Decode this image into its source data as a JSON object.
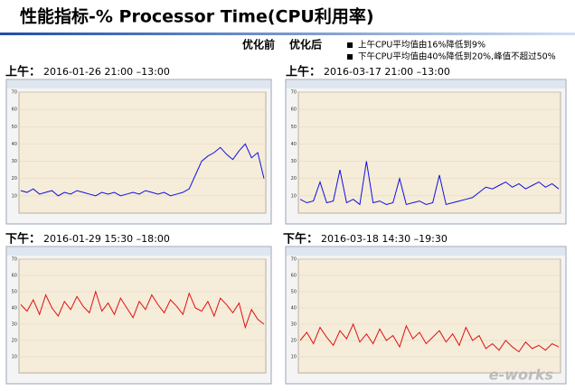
{
  "header": {
    "title": "性能指标-% Processor Time(CPU利用率)"
  },
  "comparison": {
    "before": "优化前",
    "after": "优化后",
    "notes": [
      "上午CPU平均值由16%降低到9%",
      "下午CPU平均值由40%降低到20%,峰值不超过50%"
    ]
  },
  "sections": [
    {
      "label": "上午：",
      "time": "2016-01-26 21:00 –13:00"
    },
    {
      "label": "上午：",
      "time": "2016-03-17 21:00 –13:00"
    },
    {
      "label": "下午：",
      "time": "2016-01-29 15:30 –18:00"
    },
    {
      "label": "下午：",
      "time": "2016-03-18 14:30 –19:30"
    }
  ],
  "watermark": "e-works",
  "chart_data": [
    {
      "type": "line",
      "ylim": [
        0,
        70
      ],
      "yticks": [
        10,
        20,
        30,
        40,
        50,
        60,
        70
      ],
      "series": [
        {
          "color": "#1010e0",
          "values": [
            13,
            12,
            14,
            11,
            12,
            13,
            10,
            12,
            11,
            13,
            12,
            11,
            10,
            12,
            11,
            12,
            10,
            11,
            12,
            11,
            13,
            12,
            11,
            12,
            10,
            11,
            12,
            14,
            22,
            30,
            33,
            35,
            38,
            34,
            31,
            36,
            40,
            32,
            35,
            20
          ]
        }
      ]
    },
    {
      "type": "line",
      "ylim": [
        0,
        70
      ],
      "yticks": [
        10,
        20,
        30,
        40,
        50,
        60,
        70
      ],
      "series": [
        {
          "color": "#1010e0",
          "values": [
            8,
            6,
            7,
            18,
            6,
            7,
            25,
            6,
            8,
            5,
            30,
            6,
            7,
            5,
            6,
            20,
            5,
            6,
            7,
            5,
            6,
            22,
            5,
            6,
            7,
            8,
            9,
            12,
            15,
            14,
            16,
            18,
            15,
            17,
            14,
            16,
            18,
            15,
            17,
            14
          ]
        }
      ]
    },
    {
      "type": "line",
      "ylim": [
        0,
        70
      ],
      "yticks": [
        10,
        20,
        30,
        40,
        50,
        60,
        70
      ],
      "series": [
        {
          "color": "#e01010",
          "values": [
            42,
            38,
            45,
            36,
            48,
            40,
            35,
            44,
            39,
            47,
            41,
            37,
            50,
            38,
            43,
            36,
            46,
            40,
            34,
            44,
            39,
            48,
            42,
            37,
            45,
            41,
            36,
            49,
            40,
            38,
            44,
            35,
            46,
            42,
            37,
            43,
            28,
            39,
            33,
            30
          ]
        }
      ]
    },
    {
      "type": "line",
      "ylim": [
        0,
        70
      ],
      "yticks": [
        10,
        20,
        30,
        40,
        50,
        60,
        70
      ],
      "series": [
        {
          "color": "#e01010",
          "values": [
            20,
            25,
            18,
            28,
            22,
            17,
            26,
            21,
            30,
            19,
            24,
            18,
            27,
            20,
            23,
            16,
            29,
            21,
            25,
            18,
            22,
            26,
            19,
            24,
            17,
            28,
            20,
            23,
            15,
            18,
            14,
            20,
            16,
            13,
            19,
            15,
            17,
            14,
            18,
            16
          ]
        }
      ]
    }
  ]
}
